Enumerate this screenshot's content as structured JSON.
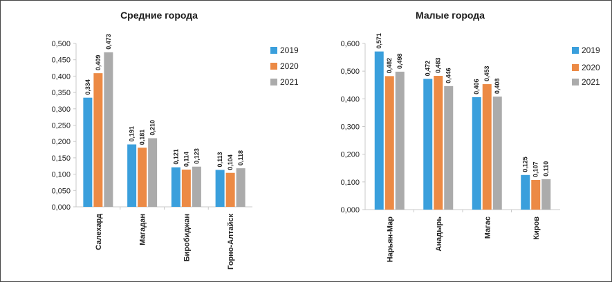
{
  "chart_data": [
    {
      "type": "bar",
      "title": "Средние города",
      "categories": [
        "Салехард",
        "Магадан",
        "Биробиджан",
        "Горно-Алтайск"
      ],
      "series": [
        {
          "name": "2019",
          "values": [
            0.334,
            0.191,
            0.121,
            0.113
          ],
          "labels": [
            "0,334",
            "0,191",
            "0,121",
            "0,113"
          ]
        },
        {
          "name": "2020",
          "values": [
            0.409,
            0.181,
            0.114,
            0.104
          ],
          "labels": [
            "0,409",
            "0,181",
            "0,114",
            "0,104"
          ]
        },
        {
          "name": "2021",
          "values": [
            0.473,
            0.21,
            0.123,
            0.118
          ],
          "labels": [
            "0,473",
            "0,210",
            "0,123",
            "0,118"
          ]
        }
      ],
      "ylim": [
        0,
        0.5
      ],
      "yticks": [
        0,
        0.05,
        0.1,
        0.15,
        0.2,
        0.25,
        0.3,
        0.35,
        0.4,
        0.45,
        0.5
      ],
      "ytick_labels": [
        "0,000",
        "0,050",
        "0,100",
        "0,150",
        "0,200",
        "0,250",
        "0,300",
        "0,350",
        "0,400",
        "0,450",
        "0,500"
      ],
      "grid": false,
      "legend_position": "right"
    },
    {
      "type": "bar",
      "title": "Малые города",
      "categories": [
        "Нарьян-Мар",
        "Анадырь",
        "Магас",
        "Киров"
      ],
      "series": [
        {
          "name": "2019",
          "values": [
            0.571,
            0.472,
            0.406,
            0.125
          ],
          "labels": [
            "0,571",
            "0,472",
            "0,406",
            "0,125"
          ]
        },
        {
          "name": "2020",
          "values": [
            0.482,
            0.483,
            0.453,
            0.107
          ],
          "labels": [
            "0,482",
            "0,483",
            "0,453",
            "0,107"
          ]
        },
        {
          "name": "2021",
          "values": [
            0.498,
            0.446,
            0.408,
            0.11
          ],
          "labels": [
            "0,498",
            "0,446",
            "0,408",
            "0,110"
          ]
        }
      ],
      "ylim": [
        0,
        0.6
      ],
      "yticks": [
        0,
        0.1,
        0.2,
        0.3,
        0.4,
        0.5,
        0.6
      ],
      "ytick_labels": [
        "0,000",
        "0,100",
        "0,200",
        "0,300",
        "0,400",
        "0,500",
        "0,600"
      ],
      "grid": false,
      "legend_position": "right"
    }
  ],
  "colors": {
    "series": [
      "#3a9fdc",
      "#ec8a45",
      "#ababab"
    ],
    "axis": "#c8c8c8"
  }
}
